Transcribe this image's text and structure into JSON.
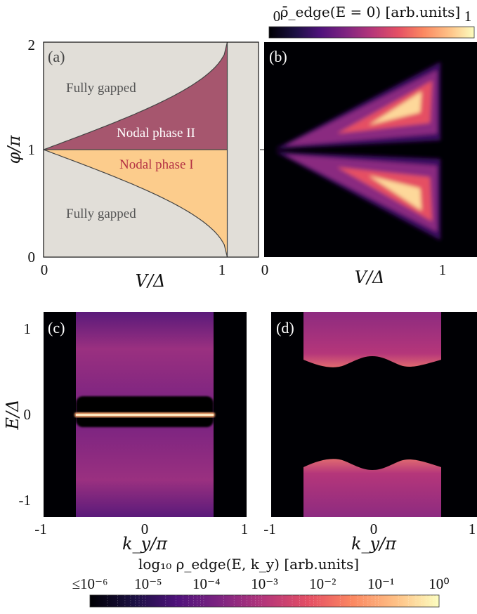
{
  "colors": {
    "gapped": "#e1ded8",
    "nodal_I": "#fccc8c",
    "nodal_II": "#a6566e",
    "nodal_I_text": "#b43244",
    "gapped_text": "#555555",
    "nodal_II_text": "#ffffff"
  },
  "chart_data": [
    {
      "panel": "(a)",
      "type": "area",
      "xlabel": "V/Δ",
      "ylabel": "φ/π",
      "xlim": [
        0,
        1.17
      ],
      "ylim": [
        0,
        2
      ],
      "xticks": [
        0,
        1
      ],
      "yticks": [
        0,
        1,
        2
      ],
      "x_tick_labels": [
        "0",
        "1"
      ],
      "y_tick_labels": [
        "0",
        "1",
        "2"
      ],
      "regions": [
        {
          "name": "Fully gapped",
          "label_pos": "upper-left"
        },
        {
          "name": "Nodal phase II",
          "bounds": "1 < φ/π < 1 + (2/π)·arcsin(V/Δ), V/Δ ≤ 1"
        },
        {
          "name": "Nodal phase I",
          "bounds": "1 − (2/π)·arcsin(V/Δ) < φ/π < 1, V/Δ ≤ 1"
        },
        {
          "name": "Fully gapped",
          "label_pos": "lower-left"
        }
      ]
    },
    {
      "panel": "(b)",
      "type": "heatmap",
      "xlabel": "V/Δ",
      "ylabel": "",
      "xticks": [
        0,
        1
      ],
      "x_tick_labels": [
        "0",
        "1"
      ],
      "xlim": [
        0,
        1.17
      ],
      "ylim": [
        0,
        2
      ],
      "colorbar": {
        "title": "ρ̄_edge(E = 0) [arb.units]",
        "min_label": "0",
        "max_label": "1",
        "range": [
          0,
          1
        ],
        "placement": "top-right"
      }
    },
    {
      "panel": "(c)",
      "type": "heatmap",
      "xlabel": "k_y/π",
      "ylabel": "E/Δ",
      "xlim": [
        -1,
        1
      ],
      "ylim": [
        -1.2,
        1.2
      ],
      "x_tick_labels": [
        "-1",
        "0",
        "1"
      ],
      "y_tick_labels": [
        "1",
        "0",
        "-1"
      ],
      "features": [
        "flat zero-energy edge band for |k_y/π| < 0.63"
      ]
    },
    {
      "panel": "(d)",
      "type": "heatmap",
      "xlabel": "k_y/π",
      "ylabel": "",
      "xlim": [
        -1,
        1
      ],
      "ylim": [
        -1.2,
        1.2
      ],
      "x_tick_labels": [
        "-1",
        "0",
        "1"
      ],
      "features": [
        "gapped spectrum, gap edge ≈ ±0.55 Δ"
      ]
    }
  ],
  "bottom_colorbar": {
    "title": "log₁₀ ρ_edge(E, k_y) [arb.units]",
    "tick_labels": [
      "≤10⁻⁶",
      "10⁻⁵",
      "10⁻⁴",
      "10⁻³",
      "10⁻²",
      "10⁻¹",
      "10⁰"
    ],
    "range": [
      -6,
      0
    ],
    "scale": "log"
  }
}
